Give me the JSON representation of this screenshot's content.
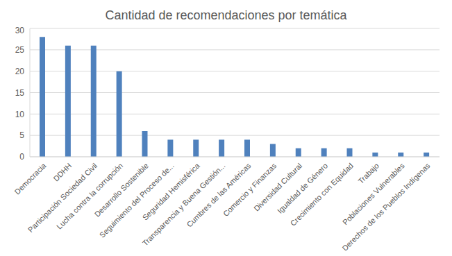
{
  "chart_data": {
    "type": "bar",
    "title": "Cantidad de recomendaciones por temática",
    "categories": [
      "Democracia",
      "DDHH",
      "Participación Sociedad Civil",
      "Lucha contra la corrupción",
      "Desarrollo Sostenible",
      "Seguimiento del Proceso de...",
      "Seguridad Hemisférica",
      "Transparencia y Buena Gestión...",
      "Cumbres de las Américas",
      "Comercio y Finanzas",
      "Diversidad Cultural",
      "Igualdad de Género",
      "Crecimiento con Equidad",
      "Trabajo",
      "Poblaciones Vulnerables",
      "Derechos de los Pueblos Indígenas"
    ],
    "values": [
      28,
      26,
      26,
      20,
      6,
      4,
      4,
      4,
      4,
      3,
      2,
      2,
      2,
      1,
      1,
      1
    ],
    "color": "#4f81bd",
    "ylim": [
      0,
      30
    ],
    "yticks": [
      0,
      5,
      10,
      15,
      20,
      25,
      30
    ],
    "grid": true
  }
}
